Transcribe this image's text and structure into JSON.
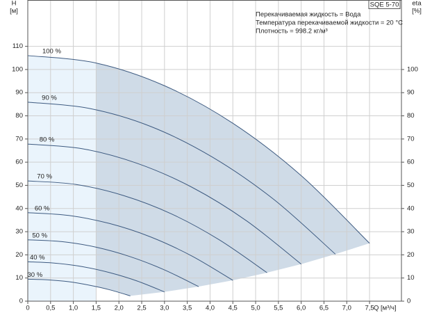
{
  "chart_data": {
    "type": "line",
    "title": "SQE 5-70",
    "annotations": [
      "Перекачиваемая жидкость = Вода",
      "Температура перекачиваемой жидкости = 20 °C",
      "Плотность = 998.2 кг/м³"
    ],
    "y_label": [
      "H",
      "[м]"
    ],
    "y2_label": [
      "eta",
      "[%]"
    ],
    "x_label": "Q [м³/ч]",
    "xlim": [
      0,
      8.2
    ],
    "xticks": [
      0,
      {
        "value": 0.5,
        "label": "0,5"
      },
      {
        "value": 1.0,
        "label": "1,0"
      },
      {
        "value": 1.5,
        "label": "1,5"
      },
      {
        "value": 2.0,
        "label": "2,0"
      },
      {
        "value": 2.5,
        "label": "2,5"
      },
      {
        "value": 3.0,
        "label": "3,0"
      },
      {
        "value": 3.5,
        "label": "3,5"
      },
      {
        "value": 4.0,
        "label": "4,0"
      },
      {
        "value": 4.5,
        "label": "4,5"
      },
      {
        "value": 5.0,
        "label": "5,0"
      },
      {
        "value": 5.5,
        "label": "5,5"
      },
      {
        "value": 6.0,
        "label": "6,0"
      },
      {
        "value": 6.5,
        "label": "6,5"
      },
      {
        "value": 7.0,
        "label": "7,0"
      },
      {
        "value": 7.5,
        "label": "7,5"
      }
    ],
    "ylim": [
      0,
      130
    ],
    "yticks": [
      0,
      10,
      20,
      30,
      40,
      50,
      60,
      70,
      80,
      90,
      100,
      110
    ],
    "y2lim": [
      0,
      130
    ],
    "y2ticks": [
      0,
      10,
      20,
      30,
      40,
      50,
      60,
      70,
      80,
      90,
      100
    ],
    "grid": true,
    "highlight_x_start": 1.5,
    "color": "#3d5a80",
    "series": [
      {
        "name": "100 %",
        "x": [
          0,
          1.5,
          3,
          4.5,
          6,
          7.5
        ],
        "values": [
          106,
          102.8,
          93,
          76.8,
          54.2,
          25
        ]
      },
      {
        "name": "90 %",
        "x": [
          0,
          1.35,
          2.7,
          4.05,
          5.4,
          6.75
        ],
        "values": [
          85.9,
          83.2,
          75.4,
          62.2,
          43.9,
          20.3
        ]
      },
      {
        "name": "80 %",
        "x": [
          0,
          1.2,
          2.4,
          3.6,
          4.8,
          6
        ],
        "values": [
          67.8,
          65.8,
          59.5,
          49.2,
          34.7,
          16
        ]
      },
      {
        "name": "70 %",
        "x": [
          0,
          1.05,
          2.1,
          3.15,
          4.2,
          5.25
        ],
        "values": [
          51.9,
          50.4,
          45.6,
          37.7,
          26.5,
          12.3
        ]
      },
      {
        "name": "60 %",
        "x": [
          0,
          0.9,
          1.8,
          2.7,
          3.6,
          4.5
        ],
        "values": [
          38.2,
          37,
          33.5,
          27.7,
          19.5,
          9
        ]
      },
      {
        "name": "50 %",
        "x": [
          0,
          0.75,
          1.5,
          2.25,
          3,
          3.75
        ],
        "values": [
          26.5,
          25.7,
          23.3,
          19.2,
          13.5,
          6.3
        ]
      },
      {
        "name": "40 %",
        "x": [
          0,
          0.6,
          1.2,
          1.8,
          2.4,
          3
        ],
        "values": [
          17,
          16.4,
          14.9,
          12.3,
          8.7,
          4
        ]
      },
      {
        "name": "30 %",
        "x": [
          0,
          0.45,
          0.9,
          1.35,
          1.8,
          2.25
        ],
        "values": [
          9.5,
          9.2,
          8.4,
          6.9,
          4.9,
          2.3
        ]
      }
    ]
  }
}
